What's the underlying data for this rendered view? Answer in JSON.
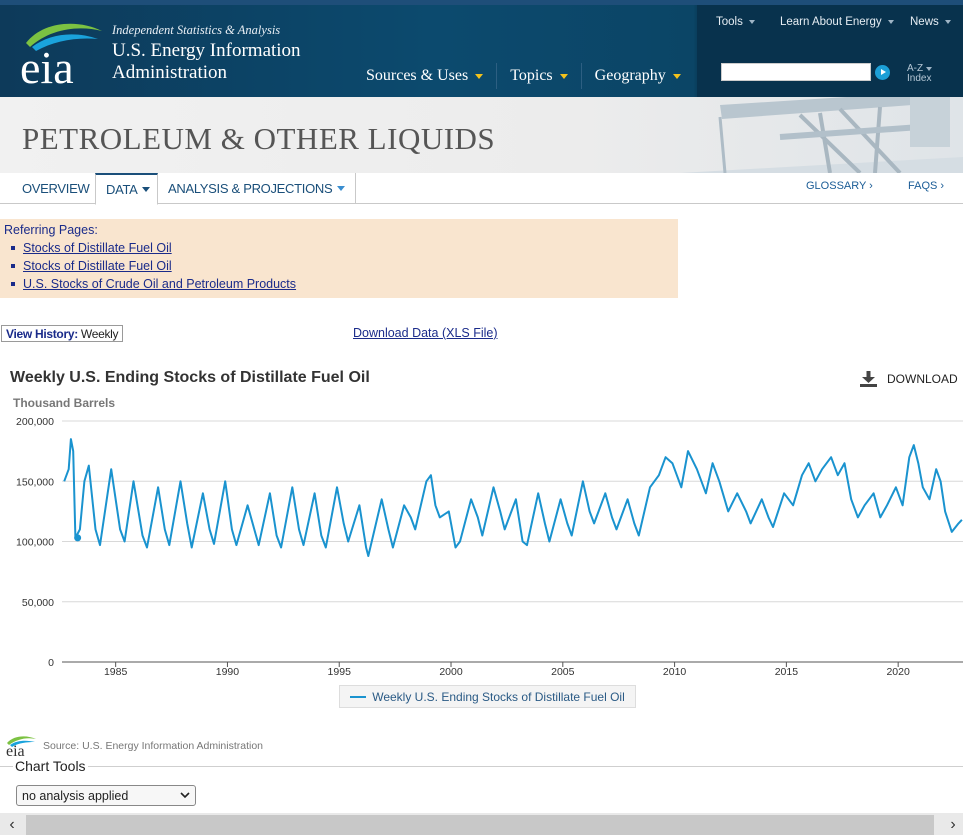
{
  "header": {
    "logo_text": "eia",
    "tagline": "Independent Statistics & Analysis",
    "org_line1": "U.S. Energy Information",
    "org_line2": "Administration",
    "main_nav": [
      {
        "label": "Sources & Uses"
      },
      {
        "label": "Topics"
      },
      {
        "label": "Geography"
      }
    ],
    "utility_nav": [
      {
        "label": "Tools"
      },
      {
        "label": "Learn About Energy"
      },
      {
        "label": "News"
      }
    ],
    "search": {
      "value": "",
      "placeholder": ""
    },
    "az_index_line1": "A-Z",
    "az_index_line2": "Index"
  },
  "banner": {
    "title": "PETROLEUM & OTHER LIQUIDS"
  },
  "subnav": {
    "tabs": [
      {
        "label": "OVERVIEW",
        "active": false
      },
      {
        "label": "DATA",
        "active": true
      },
      {
        "label": "ANALYSIS & PROJECTIONS",
        "active": false
      }
    ],
    "links": [
      {
        "label": "GLOSSARY ›"
      },
      {
        "label": "FAQS ›"
      }
    ]
  },
  "referring": {
    "title": "Referring Pages:",
    "links": [
      "Stocks of Distillate Fuel Oil",
      "Stocks of Distillate Fuel Oil",
      "U.S. Stocks of Crude Oil and Petroleum Products"
    ]
  },
  "view_history": {
    "label": "View History:",
    "value": "Weekly"
  },
  "download_data": "Download Data (XLS File)",
  "chart_download": "DOWNLOAD",
  "chart_data": {
    "type": "line",
    "title": "Weekly U.S. Ending Stocks of Distillate Fuel Oil",
    "ylabel": "Thousand Barrels",
    "xlabel": "",
    "ylim": [
      0,
      200000
    ],
    "xlim": [
      1982.6,
      2022.9
    ],
    "y_ticks": [
      "0",
      "50,000",
      "100,000",
      "150,000",
      "200,000"
    ],
    "y_tick_values": [
      0,
      50000,
      100000,
      150000,
      200000
    ],
    "x_ticks": [
      "1985",
      "1990",
      "1995",
      "2000",
      "2005",
      "2010",
      "2015",
      "2020"
    ],
    "x_tick_values": [
      1985,
      1990,
      1995,
      2000,
      2005,
      2010,
      2015,
      2020
    ],
    "grid": true,
    "legend_position": "bottom",
    "series": [
      {
        "name": "Weekly U.S. Ending Stocks of Distillate Fuel Oil",
        "color": "#1a93cf",
        "points": [
          [
            1982.7,
            150000
          ],
          [
            1982.9,
            160000
          ],
          [
            1983.0,
            185000
          ],
          [
            1983.1,
            175000
          ],
          [
            1983.2,
            103000
          ],
          [
            1983.4,
            110000
          ],
          [
            1983.6,
            150000
          ],
          [
            1983.8,
            163000
          ],
          [
            1984.1,
            110000
          ],
          [
            1984.3,
            97000
          ],
          [
            1984.8,
            160000
          ],
          [
            1985.2,
            110000
          ],
          [
            1985.4,
            100000
          ],
          [
            1985.8,
            150000
          ],
          [
            1986.2,
            105000
          ],
          [
            1986.4,
            95000
          ],
          [
            1986.9,
            145000
          ],
          [
            1987.2,
            110000
          ],
          [
            1987.4,
            97000
          ],
          [
            1987.9,
            150000
          ],
          [
            1988.2,
            115000
          ],
          [
            1988.4,
            95000
          ],
          [
            1988.9,
            140000
          ],
          [
            1989.2,
            110000
          ],
          [
            1989.4,
            98000
          ],
          [
            1989.9,
            150000
          ],
          [
            1990.2,
            110000
          ],
          [
            1990.4,
            97000
          ],
          [
            1990.9,
            130000
          ],
          [
            1991.2,
            110000
          ],
          [
            1991.4,
            97000
          ],
          [
            1991.9,
            140000
          ],
          [
            1992.2,
            105000
          ],
          [
            1992.4,
            95000
          ],
          [
            1992.9,
            145000
          ],
          [
            1993.2,
            110000
          ],
          [
            1993.4,
            97000
          ],
          [
            1993.9,
            140000
          ],
          [
            1994.2,
            105000
          ],
          [
            1994.4,
            95000
          ],
          [
            1994.9,
            145000
          ],
          [
            1995.2,
            115000
          ],
          [
            1995.4,
            100000
          ],
          [
            1995.9,
            130000
          ],
          [
            1996.2,
            95000
          ],
          [
            1996.3,
            88000
          ],
          [
            1996.9,
            135000
          ],
          [
            1997.2,
            110000
          ],
          [
            1997.4,
            95000
          ],
          [
            1997.9,
            130000
          ],
          [
            1998.2,
            120000
          ],
          [
            1998.4,
            110000
          ],
          [
            1998.9,
            150000
          ],
          [
            1999.1,
            155000
          ],
          [
            1999.3,
            130000
          ],
          [
            1999.5,
            120000
          ],
          [
            1999.9,
            125000
          ],
          [
            2000.2,
            95000
          ],
          [
            2000.4,
            100000
          ],
          [
            2000.9,
            135000
          ],
          [
            2001.2,
            120000
          ],
          [
            2001.4,
            105000
          ],
          [
            2001.9,
            145000
          ],
          [
            2002.2,
            125000
          ],
          [
            2002.4,
            110000
          ],
          [
            2002.9,
            135000
          ],
          [
            2003.2,
            100000
          ],
          [
            2003.4,
            97000
          ],
          [
            2003.9,
            140000
          ],
          [
            2004.2,
            115000
          ],
          [
            2004.4,
            100000
          ],
          [
            2004.9,
            135000
          ],
          [
            2005.2,
            115000
          ],
          [
            2005.4,
            105000
          ],
          [
            2005.9,
            150000
          ],
          [
            2006.2,
            125000
          ],
          [
            2006.4,
            115000
          ],
          [
            2006.9,
            140000
          ],
          [
            2007.2,
            120000
          ],
          [
            2007.4,
            110000
          ],
          [
            2007.9,
            135000
          ],
          [
            2008.2,
            115000
          ],
          [
            2008.4,
            105000
          ],
          [
            2008.9,
            145000
          ],
          [
            2009.3,
            155000
          ],
          [
            2009.6,
            170000
          ],
          [
            2009.9,
            165000
          ],
          [
            2010.3,
            145000
          ],
          [
            2010.6,
            175000
          ],
          [
            2011.0,
            160000
          ],
          [
            2011.4,
            140000
          ],
          [
            2011.7,
            165000
          ],
          [
            2012.0,
            150000
          ],
          [
            2012.4,
            125000
          ],
          [
            2012.8,
            140000
          ],
          [
            2013.2,
            125000
          ],
          [
            2013.4,
            115000
          ],
          [
            2013.9,
            135000
          ],
          [
            2014.2,
            120000
          ],
          [
            2014.4,
            112000
          ],
          [
            2014.9,
            140000
          ],
          [
            2015.3,
            130000
          ],
          [
            2015.7,
            155000
          ],
          [
            2016.0,
            165000
          ],
          [
            2016.3,
            150000
          ],
          [
            2016.6,
            160000
          ],
          [
            2017.0,
            170000
          ],
          [
            2017.3,
            155000
          ],
          [
            2017.6,
            165000
          ],
          [
            2017.9,
            135000
          ],
          [
            2018.2,
            120000
          ],
          [
            2018.5,
            130000
          ],
          [
            2018.9,
            140000
          ],
          [
            2019.2,
            120000
          ],
          [
            2019.5,
            130000
          ],
          [
            2019.9,
            145000
          ],
          [
            2020.2,
            130000
          ],
          [
            2020.5,
            170000
          ],
          [
            2020.7,
            180000
          ],
          [
            2020.9,
            165000
          ],
          [
            2021.1,
            145000
          ],
          [
            2021.4,
            135000
          ],
          [
            2021.7,
            160000
          ],
          [
            2021.9,
            150000
          ],
          [
            2022.1,
            125000
          ],
          [
            2022.4,
            108000
          ],
          [
            2022.7,
            115000
          ],
          [
            2022.85,
            118000
          ]
        ]
      }
    ],
    "highlight_point": [
      1983.3,
      103000
    ]
  },
  "legend_label": "Weekly U.S. Ending Stocks of Distillate Fuel Oil",
  "source": {
    "logo_text": "eia",
    "label": "Source: U.S. Energy Information Administration"
  },
  "chart_tools": {
    "label": "Chart Tools",
    "select_value": "no analysis applied"
  },
  "colors": {
    "header": "#0c4a6e",
    "accent": "#f3c21b",
    "series": "#1a93cf",
    "link": "#1a2b8a"
  }
}
